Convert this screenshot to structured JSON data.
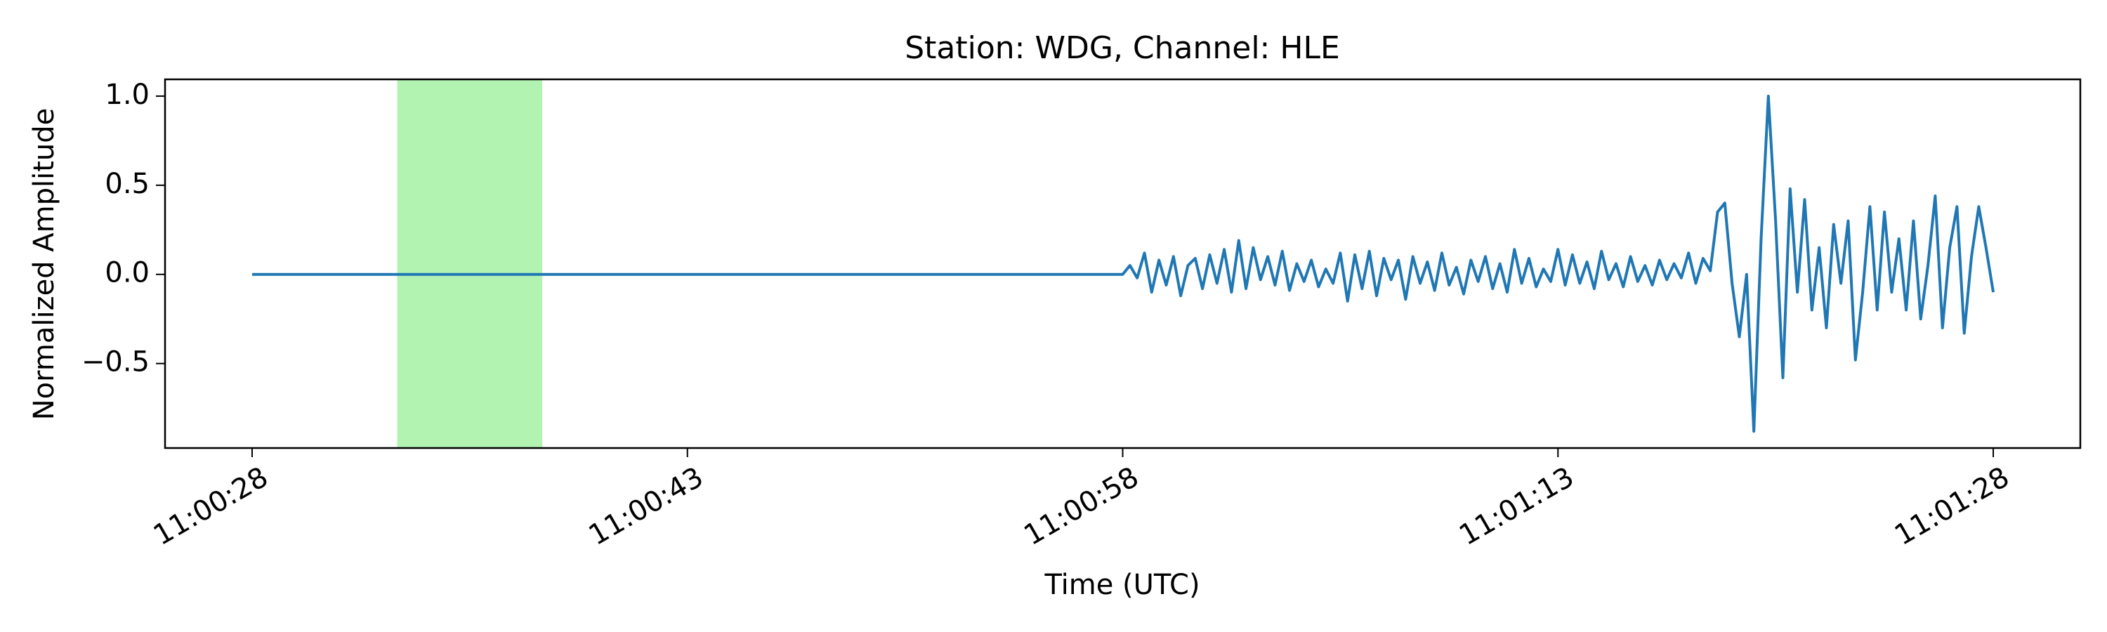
{
  "chart_data": {
    "type": "line",
    "title": "Station: WDG, Channel: HLE",
    "xlabel": "Time (UTC)",
    "ylabel": "Normalized Amplitude",
    "color": "#1f77b4",
    "highlight": {
      "start": 39633,
      "end": 39638,
      "color": "#b2f3b2"
    },
    "xlim": [
      39625,
      39691
    ],
    "ylim": [
      -0.974,
      1.094
    ],
    "xticks": [
      {
        "value": 39628,
        "label": "11:00:28"
      },
      {
        "value": 39643,
        "label": "11:00:43"
      },
      {
        "value": 39658,
        "label": "11:00:58"
      },
      {
        "value": 39673,
        "label": "11:01:13"
      },
      {
        "value": 39688,
        "label": "11:01:28"
      }
    ],
    "yticks": [
      {
        "value": -0.5,
        "label": "−0.5"
      },
      {
        "value": 0,
        "label": "0.0"
      },
      {
        "value": 0.5,
        "label": "0.5"
      },
      {
        "value": 1,
        "label": "1.0"
      }
    ],
    "x": [
      39628,
      39658,
      39658.25,
      39658.5,
      39658.75,
      39659,
      39659.25,
      39659.5,
      39659.75,
      39660,
      39660.25,
      39660.5,
      39660.75,
      39661,
      39661.25,
      39661.5,
      39661.75,
      39662,
      39662.25,
      39662.5,
      39662.75,
      39663,
      39663.25,
      39663.5,
      39663.75,
      39664,
      39664.25,
      39664.5,
      39664.75,
      39665,
      39665.25,
      39665.5,
      39665.75,
      39666,
      39666.25,
      39666.5,
      39666.75,
      39667,
      39667.25,
      39667.5,
      39667.75,
      39668,
      39668.25,
      39668.5,
      39668.75,
      39669,
      39669.25,
      39669.5,
      39669.75,
      39670,
      39670.25,
      39670.5,
      39670.75,
      39671,
      39671.25,
      39671.5,
      39671.75,
      39672,
      39672.25,
      39672.5,
      39672.75,
      39673,
      39673.25,
      39673.5,
      39673.75,
      39674,
      39674.25,
      39674.5,
      39674.75,
      39675,
      39675.25,
      39675.5,
      39675.75,
      39676,
      39676.25,
      39676.5,
      39676.75,
      39677,
      39677.25,
      39677.5,
      39677.75,
      39678,
      39678.25,
      39678.5,
      39678.75,
      39679,
      39679.25,
      39679.5,
      39679.75,
      39680,
      39680.25,
      39680.5,
      39680.75,
      39681,
      39681.25,
      39681.5,
      39681.75,
      39682,
      39682.25,
      39682.5,
      39682.75,
      39683,
      39683.25,
      39683.5,
      39683.75,
      39684,
      39684.25,
      39684.5,
      39684.75,
      39685,
      39685.25,
      39685.5,
      39685.75,
      39686,
      39686.25,
      39686.5,
      39686.75,
      39687,
      39687.25,
      39687.5,
      39687.75,
      39688
    ],
    "values": [
      0,
      0,
      0.05,
      -0.02,
      0.12,
      -0.1,
      0.08,
      -0.06,
      0.1,
      -0.12,
      0.05,
      0.09,
      -0.08,
      0.11,
      -0.05,
      0.14,
      -0.1,
      0.19,
      -0.08,
      0.15,
      -0.03,
      0.1,
      -0.06,
      0.13,
      -0.09,
      0.06,
      -0.04,
      0.08,
      -0.07,
      0.03,
      -0.05,
      0.12,
      -0.15,
      0.11,
      -0.08,
      0.13,
      -0.12,
      0.09,
      -0.03,
      0.08,
      -0.14,
      0.1,
      -0.05,
      0.07,
      -0.09,
      0.12,
      -0.06,
      0.04,
      -0.11,
      0.08,
      -0.04,
      0.1,
      -0.08,
      0.06,
      -0.1,
      0.14,
      -0.05,
      0.09,
      -0.07,
      0.03,
      -0.04,
      0.14,
      -0.06,
      0.11,
      -0.05,
      0.07,
      -0.08,
      0.13,
      -0.03,
      0.06,
      -0.07,
      0.1,
      -0.04,
      0.05,
      -0.06,
      0.08,
      -0.03,
      0.06,
      -0.02,
      0.12,
      -0.05,
      0.09,
      0.02,
      0.35,
      0.4,
      -0.05,
      -0.35,
      0.0,
      -0.88,
      0.2,
      1.0,
      0.3,
      -0.58,
      0.48,
      -0.1,
      0.42,
      -0.2,
      0.15,
      -0.3,
      0.28,
      -0.05,
      0.3,
      -0.48,
      -0.1,
      0.38,
      -0.2,
      0.35,
      -0.1,
      0.2,
      -0.2,
      0.3,
      -0.25,
      0.05,
      0.44,
      -0.3,
      0.15,
      0.38,
      -0.33,
      0.1,
      0.38,
      0.15,
      -0.1
    ]
  }
}
